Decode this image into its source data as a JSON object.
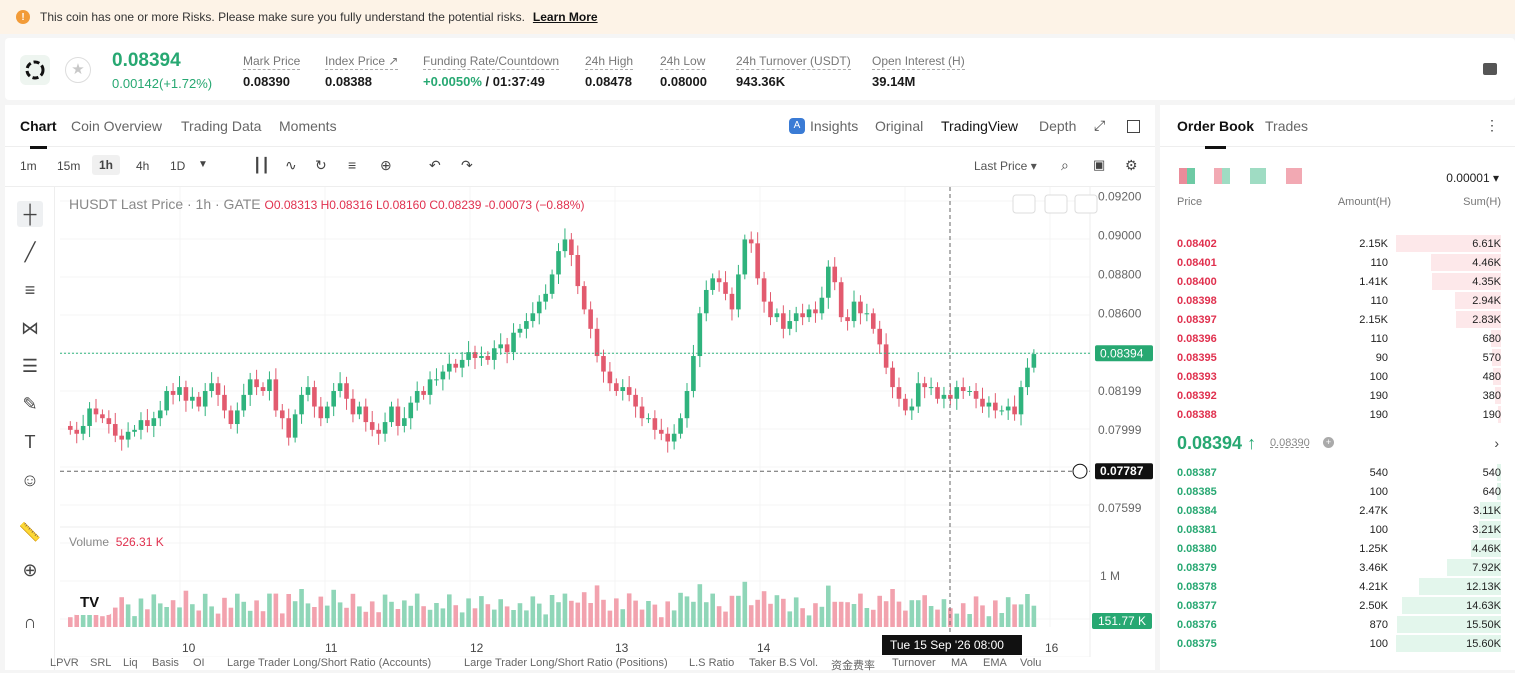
{
  "banner": {
    "text": "This coin has one or more Risks. Please make sure you fully understand the potential risks.",
    "link": "Learn More"
  },
  "ticker": {
    "price": "0.08394",
    "change": "0.00142(+1.72%)",
    "stats": [
      {
        "label": "Mark Price",
        "value": "0.08390"
      },
      {
        "label": "Index Price ↗",
        "value": "0.08388"
      },
      {
        "label": "Funding Rate/Countdown",
        "value": "+0.0050%",
        "value2": " / 01:37:49"
      },
      {
        "label": "24h High",
        "value": "0.08478"
      },
      {
        "label": "24h Low",
        "value": "0.08000"
      },
      {
        "label": "24h Turnover (USDT)",
        "value": "943.36K"
      },
      {
        "label": "Open Interest (H)",
        "value": "39.14M"
      }
    ]
  },
  "chart_tabs": [
    "Chart",
    "Coin Overview",
    "Trading Data",
    "Moments"
  ],
  "chart_tabs_right": [
    "Insights",
    "Original",
    "TradingView",
    "Depth"
  ],
  "intervals": [
    "1m",
    "15m",
    "1h",
    "4h",
    "1D"
  ],
  "price_source": "Last Price ▾",
  "legend": {
    "title": "HUSDT Last Price · 1h · GATE",
    "ohlc": "O0.08313  H0.08316  L0.08160  C0.08239  -0.00073 (−0.88%)"
  },
  "volume": {
    "label": "Volume",
    "value": "526.31 K",
    "axis_label": "1 M",
    "current": "151.77 K"
  },
  "price_axis": [
    "0.09200",
    "0.09000",
    "0.08800",
    "0.08600",
    "0.08394",
    "0.08199",
    "0.07999",
    "0.07787",
    "0.07599"
  ],
  "time_axis": [
    "10",
    "11",
    "12",
    "13",
    "14",
    "16"
  ],
  "crosshair_time": "Tue 15 Sep '26   08:00",
  "bottom_bar": [
    "LPVR",
    "SRL",
    "Liq",
    "Basis",
    "OI",
    "Large Trader Long/Short Ratio (Accounts)",
    "Large Trader Long/Short Ratio (Positions)",
    "L.S Ratio",
    "Taker B.S Vol.",
    "资金费率",
    "Turnover",
    "MA",
    "EMA",
    "Volu"
  ],
  "colors": {
    "up": "#2fb37d",
    "down": "#e25a6e"
  },
  "chart_data": {
    "type": "candlestick",
    "y_range": [
      0.075,
      0.0925
    ],
    "current_price": 0.08394,
    "cursor_price": 0.07787,
    "x_labels": [
      "10",
      "11",
      "12",
      "13",
      "14",
      "16"
    ],
    "closes": [
      0.08,
      0.0798,
      0.0802,
      0.0811,
      0.0808,
      0.0806,
      0.0803,
      0.0797,
      0.0795,
      0.0799,
      0.08,
      0.0805,
      0.0802,
      0.0806,
      0.081,
      0.082,
      0.0818,
      0.0822,
      0.0815,
      0.0817,
      0.0812,
      0.082,
      0.0824,
      0.0818,
      0.081,
      0.0803,
      0.081,
      0.0818,
      0.0826,
      0.0822,
      0.082,
      0.0826,
      0.081,
      0.0806,
      0.0796,
      0.0808,
      0.0818,
      0.0822,
      0.0812,
      0.0806,
      0.0812,
      0.082,
      0.0824,
      0.0816,
      0.0808,
      0.0812,
      0.0804,
      0.08,
      0.0798,
      0.0804,
      0.0812,
      0.0802,
      0.0806,
      0.0814,
      0.082,
      0.0818,
      0.0826,
      0.0826,
      0.083,
      0.0834,
      0.0832,
      0.0836,
      0.084,
      0.0837,
      0.0838,
      0.0836,
      0.0842,
      0.0844,
      0.084,
      0.085,
      0.0852,
      0.0856,
      0.086,
      0.0866,
      0.087,
      0.088,
      0.0892,
      0.0898,
      0.089,
      0.0874,
      0.0862,
      0.0852,
      0.0838,
      0.083,
      0.0824,
      0.082,
      0.0822,
      0.0818,
      0.0812,
      0.0806,
      0.0806,
      0.08,
      0.0798,
      0.0794,
      0.0798,
      0.0806,
      0.082,
      0.0838,
      0.086,
      0.0872,
      0.0878,
      0.0876,
      0.087,
      0.0862,
      0.088,
      0.0898,
      0.0896,
      0.0878,
      0.0866,
      0.0858,
      0.086,
      0.0852,
      0.0856,
      0.086,
      0.0858,
      0.0862,
      0.086,
      0.0868,
      0.0884,
      0.0876,
      0.0858,
      0.0856,
      0.0866,
      0.086,
      0.086,
      0.0852,
      0.0844,
      0.0832,
      0.0822,
      0.0816,
      0.081,
      0.0812,
      0.0824,
      0.0822,
      0.0822,
      0.0816,
      0.0818,
      0.0816,
      0.0822,
      0.082,
      0.082,
      0.0816,
      0.0812,
      0.0814,
      0.081,
      0.081,
      0.0812,
      0.0808,
      0.0822,
      0.0832,
      0.0839
    ]
  },
  "orderbook": {
    "tabs": [
      "Order Book",
      "Trades"
    ],
    "precision": "0.00001 ▾",
    "headers": [
      "Price",
      "Amount(H)",
      "Sum(H)"
    ],
    "asks": [
      {
        "price": "0.08402",
        "amount": "2.15K",
        "sum": "6.61K",
        "depth": 1.0
      },
      {
        "price": "0.08401",
        "amount": "110",
        "sum": "4.46K",
        "depth": 0.67
      },
      {
        "price": "0.08400",
        "amount": "1.41K",
        "sum": "4.35K",
        "depth": 0.66
      },
      {
        "price": "0.08398",
        "amount": "110",
        "sum": "2.94K",
        "depth": 0.44
      },
      {
        "price": "0.08397",
        "amount": "2.15K",
        "sum": "2.83K",
        "depth": 0.43
      },
      {
        "price": "0.08396",
        "amount": "110",
        "sum": "680",
        "depth": 0.1
      },
      {
        "price": "0.08395",
        "amount": "90",
        "sum": "570",
        "depth": 0.086
      },
      {
        "price": "0.08393",
        "amount": "100",
        "sum": "480",
        "depth": 0.073
      },
      {
        "price": "0.08392",
        "amount": "190",
        "sum": "380",
        "depth": 0.057
      },
      {
        "price": "0.08388",
        "amount": "190",
        "sum": "190",
        "depth": 0.029
      }
    ],
    "mid_price": "0.08394 ↑",
    "mark": "0.08390",
    "bids": [
      {
        "price": "0.08387",
        "amount": "540",
        "sum": "540",
        "depth": 0.035
      },
      {
        "price": "0.08385",
        "amount": "100",
        "sum": "640",
        "depth": 0.041
      },
      {
        "price": "0.08384",
        "amount": "2.47K",
        "sum": "3.11K",
        "depth": 0.2
      },
      {
        "price": "0.08381",
        "amount": "100",
        "sum": "3.21K",
        "depth": 0.21
      },
      {
        "price": "0.08380",
        "amount": "1.25K",
        "sum": "4.46K",
        "depth": 0.29
      },
      {
        "price": "0.08379",
        "amount": "3.46K",
        "sum": "7.92K",
        "depth": 0.51
      },
      {
        "price": "0.08378",
        "amount": "4.21K",
        "sum": "12.13K",
        "depth": 0.78
      },
      {
        "price": "0.08377",
        "amount": "2.50K",
        "sum": "14.63K",
        "depth": 0.94
      },
      {
        "price": "0.08376",
        "amount": "870",
        "sum": "15.50K",
        "depth": 0.99
      },
      {
        "price": "0.08375",
        "amount": "100",
        "sum": "15.60K",
        "depth": 1.0
      }
    ]
  }
}
